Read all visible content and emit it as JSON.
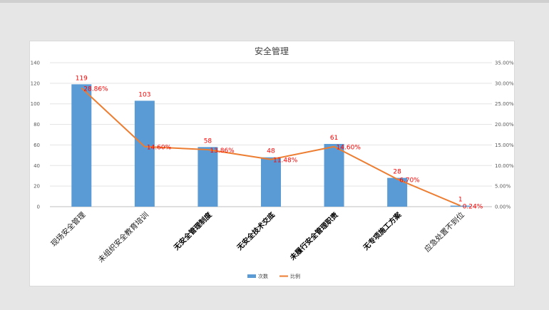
{
  "chart_data": {
    "type": "bar",
    "title": "安全管理",
    "categories": [
      "现场安全管理",
      "未组织安全教育培训",
      "无安全管理制度",
      "无安全技术交底",
      "未履行安全管理职责",
      "无专项施工方案",
      "应急处置不到位"
    ],
    "series": [
      {
        "name": "次数",
        "type": "bar",
        "axis": "left",
        "values": [
          119,
          103,
          58,
          48,
          61,
          28,
          1
        ],
        "labels": [
          "119",
          "103",
          "58",
          "48",
          "61",
          "28",
          "1"
        ],
        "color": "#5b9bd5"
      },
      {
        "name": "比例",
        "type": "line",
        "axis": "right",
        "values": [
          28.86,
          14.6,
          13.86,
          11.48,
          14.6,
          6.7,
          0.24
        ],
        "labels": [
          "28.86%",
          "14.60%",
          "13.86%",
          "11.48%",
          "14.60%",
          "6.70%",
          "0.24%"
        ],
        "color": "#ed7d31"
      }
    ],
    "y_left": {
      "min": 0,
      "max": 140,
      "ticks": [
        "0",
        "20",
        "40",
        "60",
        "80",
        "100",
        "120",
        "140"
      ]
    },
    "y_right": {
      "min": 0,
      "max": 35,
      "ticks": [
        "0.00%",
        "5.00%",
        "10.00%",
        "15.00%",
        "20.00%",
        "25.00%",
        "30.00%",
        "35.00%"
      ]
    },
    "grid": true,
    "legend": "bottom",
    "data_label_color": "#ff0000"
  }
}
